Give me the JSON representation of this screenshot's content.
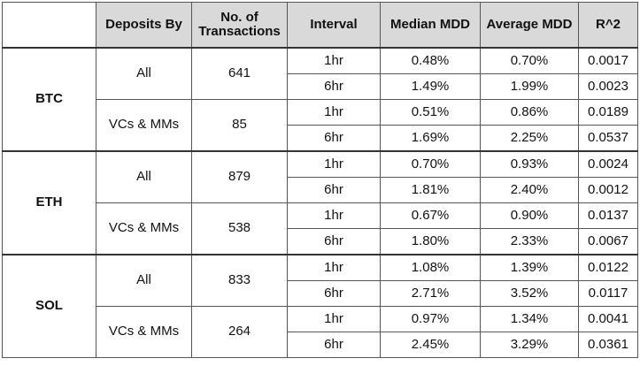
{
  "table": {
    "headers": {
      "asset": "",
      "deposits_by": "Deposits By",
      "num_transactions": "No. of Transactions",
      "interval": "Interval",
      "median_mdd": "Median MDD",
      "average_mdd": "Average MDD",
      "r2": "R^2"
    },
    "groups": [
      {
        "asset": "BTC",
        "subgroups": [
          {
            "deposits_by": "All",
            "num_transactions": "641",
            "rows": [
              {
                "interval": "1hr",
                "median_mdd": "0.48%",
                "average_mdd": "0.70%",
                "r2": "0.0017"
              },
              {
                "interval": "6hr",
                "median_mdd": "1.49%",
                "average_mdd": "1.99%",
                "r2": "0.0023"
              }
            ]
          },
          {
            "deposits_by": "VCs & MMs",
            "num_transactions": "85",
            "rows": [
              {
                "interval": "1hr",
                "median_mdd": "0.51%",
                "average_mdd": "0.86%",
                "r2": "0.0189"
              },
              {
                "interval": "6hr",
                "median_mdd": "1.69%",
                "average_mdd": "2.25%",
                "r2": "0.0537"
              }
            ]
          }
        ]
      },
      {
        "asset": "ETH",
        "subgroups": [
          {
            "deposits_by": "All",
            "num_transactions": "879",
            "rows": [
              {
                "interval": "1hr",
                "median_mdd": "0.70%",
                "average_mdd": "0.93%",
                "r2": "0.0024"
              },
              {
                "interval": "6hr",
                "median_mdd": "1.81%",
                "average_mdd": "2.40%",
                "r2": "0.0012"
              }
            ]
          },
          {
            "deposits_by": "VCs & MMs",
            "num_transactions": "538",
            "rows": [
              {
                "interval": "1hr",
                "median_mdd": "0.67%",
                "average_mdd": "0.90%",
                "r2": "0.0137"
              },
              {
                "interval": "6hr",
                "median_mdd": "1.80%",
                "average_mdd": "2.33%",
                "r2": "0.0067"
              }
            ]
          }
        ]
      },
      {
        "asset": "SOL",
        "subgroups": [
          {
            "deposits_by": "All",
            "num_transactions": "833",
            "rows": [
              {
                "interval": "1hr",
                "median_mdd": "1.08%",
                "average_mdd": "1.39%",
                "r2": "0.0122"
              },
              {
                "interval": "6hr",
                "median_mdd": "2.71%",
                "average_mdd": "3.52%",
                "r2": "0.0117"
              }
            ]
          },
          {
            "deposits_by": "VCs & MMs",
            "num_transactions": "264",
            "rows": [
              {
                "interval": "1hr",
                "median_mdd": "0.97%",
                "average_mdd": "1.34%",
                "r2": "0.0041"
              },
              {
                "interval": "6hr",
                "median_mdd": "2.45%",
                "average_mdd": "3.29%",
                "r2": "0.0361"
              }
            ]
          }
        ]
      }
    ]
  }
}
